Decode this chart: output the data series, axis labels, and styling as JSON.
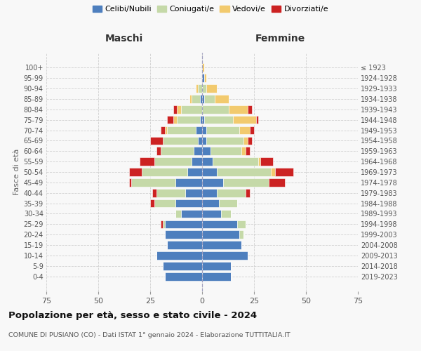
{
  "age_groups": [
    "0-4",
    "5-9",
    "10-14",
    "15-19",
    "20-24",
    "25-29",
    "30-34",
    "35-39",
    "40-44",
    "45-49",
    "50-54",
    "55-59",
    "60-64",
    "65-69",
    "70-74",
    "75-79",
    "80-84",
    "85-89",
    "90-94",
    "95-99",
    "100+"
  ],
  "birth_years": [
    "2019-2023",
    "2014-2018",
    "2009-2013",
    "2004-2008",
    "1999-2003",
    "1994-1998",
    "1989-1993",
    "1984-1988",
    "1979-1983",
    "1974-1978",
    "1969-1973",
    "1964-1968",
    "1959-1963",
    "1954-1958",
    "1949-1953",
    "1944-1948",
    "1939-1943",
    "1934-1938",
    "1929-1933",
    "1924-1928",
    "≤ 1923"
  ],
  "colors": {
    "celibe": "#4e7fbe",
    "coniugato": "#c5d9a8",
    "vedovo": "#f2ca6e",
    "divorziato": "#cc2222"
  },
  "males": {
    "celibe": [
      18,
      19,
      22,
      17,
      18,
      18,
      10,
      13,
      8,
      13,
      7,
      5,
      4,
      2,
      3,
      1,
      0,
      1,
      0,
      0,
      0
    ],
    "coniugato": [
      0,
      0,
      0,
      0,
      0,
      1,
      3,
      10,
      14,
      21,
      22,
      18,
      16,
      17,
      14,
      11,
      10,
      4,
      2,
      0,
      0
    ],
    "vedovo": [
      0,
      0,
      0,
      0,
      0,
      0,
      0,
      0,
      0,
      0,
      0,
      0,
      0,
      0,
      1,
      2,
      2,
      1,
      1,
      0,
      0
    ],
    "divorziato": [
      0,
      0,
      0,
      0,
      0,
      1,
      0,
      2,
      2,
      1,
      6,
      7,
      2,
      6,
      2,
      3,
      2,
      0,
      0,
      0,
      0
    ]
  },
  "females": {
    "celibe": [
      14,
      14,
      22,
      19,
      18,
      17,
      9,
      8,
      7,
      10,
      7,
      5,
      4,
      2,
      2,
      1,
      0,
      1,
      0,
      1,
      0
    ],
    "coniugato": [
      0,
      0,
      0,
      0,
      2,
      4,
      5,
      9,
      14,
      22,
      26,
      22,
      15,
      18,
      16,
      14,
      13,
      5,
      2,
      0,
      0
    ],
    "vedovo": [
      0,
      0,
      0,
      0,
      0,
      0,
      0,
      0,
      0,
      0,
      2,
      1,
      2,
      2,
      5,
      11,
      9,
      7,
      5,
      1,
      1
    ],
    "divorziato": [
      0,
      0,
      0,
      0,
      0,
      0,
      0,
      0,
      2,
      8,
      9,
      6,
      2,
      2,
      2,
      1,
      2,
      0,
      0,
      0,
      0
    ]
  },
  "title": "Popolazione per età, sesso e stato civile - 2024",
  "subtitle": "COMUNE DI PUSIANO (CO) - Dati ISTAT 1° gennaio 2024 - Elaborazione TUTTITALIA.IT",
  "xlabel_left": "Maschi",
  "xlabel_right": "Femmine",
  "ylabel_left": "Fasce di età",
  "xlim": 75,
  "background_color": "#f8f8f8",
  "grid_color": "#cccccc"
}
